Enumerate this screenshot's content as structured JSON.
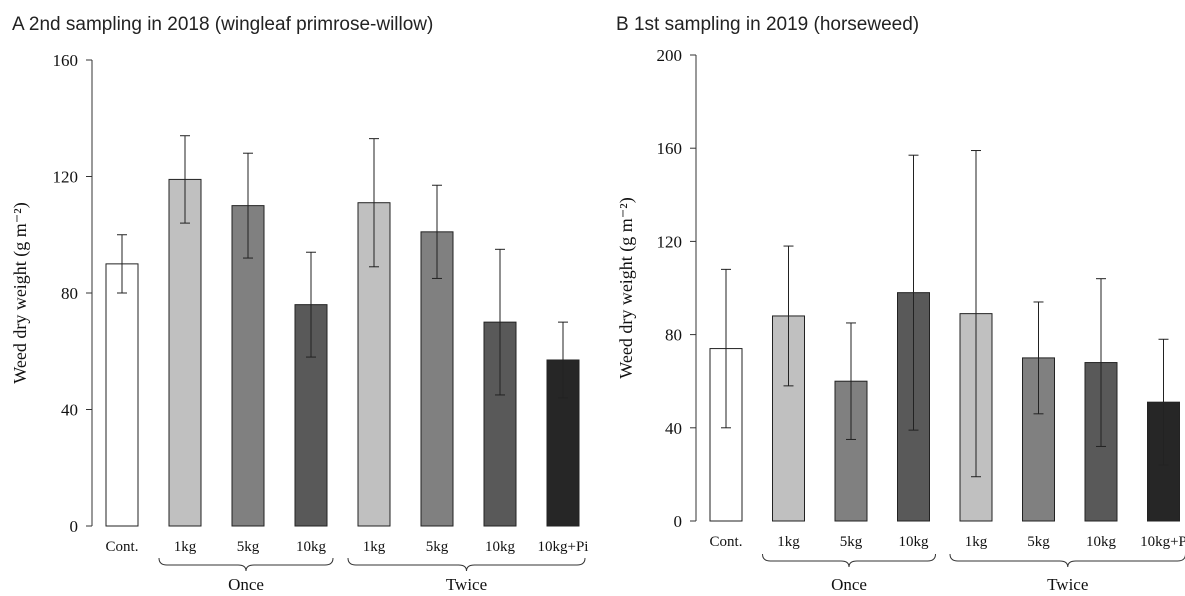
{
  "chart_data": [
    {
      "type": "bar",
      "panel_title": "A 2nd sampling in 2018 (wingleaf primrose-willow)",
      "ylabel": "Weed dry weight (g m⁻²)",
      "ylim": [
        0,
        160
      ],
      "yticks": [
        "0",
        "40",
        "80",
        "120",
        "160"
      ],
      "categories": [
        "Cont.",
        "1kg",
        "5kg",
        "10kg",
        "1kg",
        "5kg",
        "10kg",
        "10kg+Pi"
      ],
      "values": [
        90,
        119,
        110,
        76,
        111,
        101,
        70,
        57
      ],
      "errors": [
        10,
        15,
        18,
        18,
        22,
        16,
        25,
        13
      ],
      "colors": [
        "#ffffff",
        "#c0c0c0",
        "#808080",
        "#595959",
        "#c0c0c0",
        "#808080",
        "#595959",
        "#262626"
      ],
      "groups": [
        {
          "label": "Once",
          "from": 1,
          "to": 3
        },
        {
          "label": "Twice",
          "from": 4,
          "to": 7
        }
      ],
      "grid": false
    },
    {
      "type": "bar",
      "panel_title": "B 1st sampling in 2019 (horseweed)",
      "ylabel": "Weed dry weight (g m⁻²)",
      "ylim": [
        0,
        200
      ],
      "yticks": [
        "0",
        "40",
        "80",
        "120",
        "160",
        "200"
      ],
      "categories": [
        "Cont.",
        "1kg",
        "5kg",
        "10kg",
        "1kg",
        "5kg",
        "10kg",
        "10kg+P"
      ],
      "values": [
        74,
        88,
        60,
        98,
        89,
        70,
        68,
        51
      ],
      "errors": [
        34,
        30,
        25,
        59,
        70,
        24,
        36,
        27
      ],
      "colors": [
        "#ffffff",
        "#c0c0c0",
        "#808080",
        "#595959",
        "#c0c0c0",
        "#808080",
        "#595959",
        "#262626"
      ],
      "groups": [
        {
          "label": "Once",
          "from": 1,
          "to": 3
        },
        {
          "label": "Twice",
          "from": 4,
          "to": 7
        }
      ],
      "grid": false
    }
  ]
}
